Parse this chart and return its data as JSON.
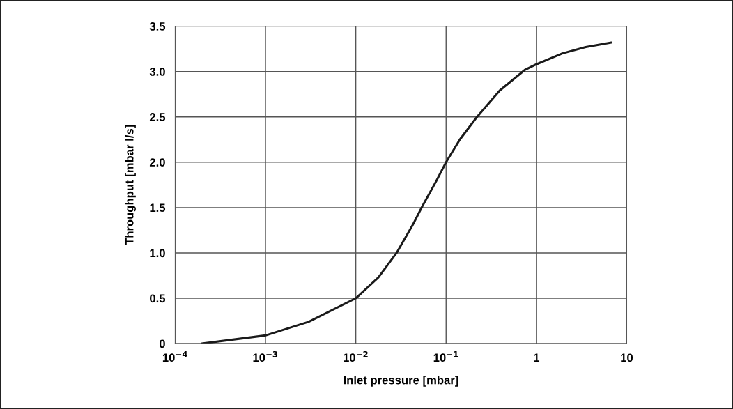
{
  "chart_data": {
    "type": "line",
    "xlabel": "Inlet pressure [mbar]",
    "ylabel": "Throughput [mbar l/s]",
    "log": "x",
    "grid": true,
    "marker": "none",
    "line_style": "solid",
    "xlim": [
      0.0001,
      10
    ],
    "ylim": [
      0,
      3.5
    ],
    "xticks": [
      {
        "value": 0.0001,
        "label": "10$^{−4}$"
      },
      {
        "value": 0.001,
        "label": "10$^{−3}$"
      },
      {
        "value": 0.01,
        "label": "10$^{−2}$"
      },
      {
        "value": 0.1,
        "label": "10$^{−1}$"
      },
      {
        "value": 1,
        "label": "1"
      },
      {
        "value": 10,
        "label": "10"
      }
    ],
    "yticks": [
      {
        "value": 0,
        "label": "0"
      },
      {
        "value": 0.5,
        "label": "0.5"
      },
      {
        "value": 1,
        "label": "1.0"
      },
      {
        "value": 1.5,
        "label": "1.5"
      },
      {
        "value": 2,
        "label": "2.0"
      },
      {
        "value": 2.5,
        "label": "2.5"
      },
      {
        "value": 3,
        "label": "3.0"
      },
      {
        "value": 3.5,
        "label": "3.5"
      }
    ],
    "x": [
      0.000197,
      0.001,
      0.003,
      0.01,
      0.0178,
      0.0283,
      0.0428,
      0.0543,
      0.0776,
      0.1,
      0.142,
      0.216,
      0.392,
      0.75,
      1,
      1.94,
      3.52,
      6.76
    ],
    "series": [
      {
        "color": "#1a1a1a",
        "values": [
          0.0,
          0.09,
          0.24,
          0.5,
          0.73,
          1.0,
          1.31,
          1.51,
          1.79,
          2.0,
          2.25,
          2.49,
          2.79,
          3.02,
          3.08,
          3.2,
          3.27,
          3.32
        ]
      }
    ]
  }
}
